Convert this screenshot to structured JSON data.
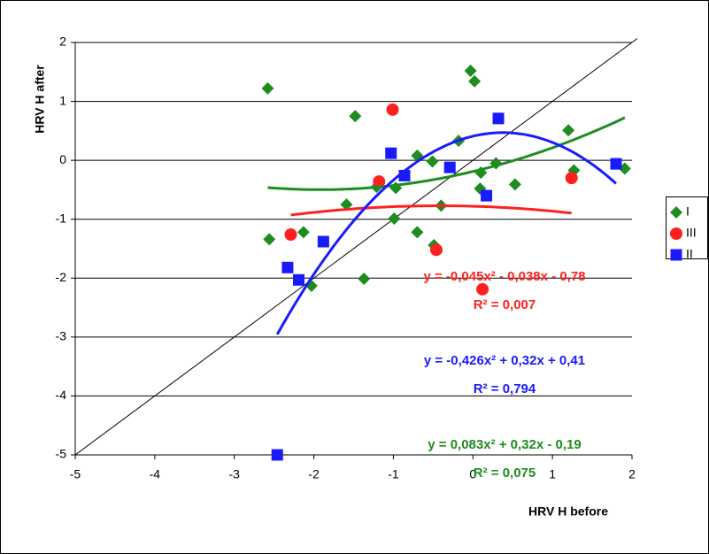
{
  "chart_data": {
    "type": "scatter",
    "x_label": "HRV H before",
    "y_label": "HRV H after",
    "xlim": [
      -5,
      2
    ],
    "ylim": [
      -5,
      2
    ],
    "xticks": [
      -5,
      -4,
      -3,
      -2,
      -1,
      0,
      1,
      2
    ],
    "yticks": [
      -5,
      -4,
      -3,
      -2,
      -1,
      0,
      1,
      2
    ],
    "grid": true,
    "identity_line": true,
    "legend": "right",
    "series": [
      {
        "name": "I",
        "color": "#1e8c1e",
        "marker": "diamond",
        "x": [
          -2.58,
          -2.56,
          -2.13,
          -2.03,
          -1.59,
          -1.48,
          -1.37,
          -1.21,
          -0.97,
          -0.99,
          -0.7,
          -0.7,
          -0.51,
          -0.49,
          -0.4,
          -0.18,
          -0.03,
          0.02,
          0.1,
          0.09,
          0.29,
          0.53,
          1.2,
          1.27,
          1.91
        ],
        "values": [
          1.22,
          -1.34,
          -1.22,
          -2.13,
          -0.75,
          0.75,
          -2.01,
          -0.45,
          -0.47,
          -0.99,
          0.08,
          -1.22,
          -0.02,
          -1.44,
          -0.77,
          0.33,
          1.52,
          1.34,
          -0.21,
          -0.48,
          -0.05,
          -0.41,
          0.51,
          -0.17,
          -0.14
        ],
        "trendline": {
          "coefficients": [
            0.083,
            0.32,
            -0.19
          ],
          "equation": "y = 0,083x² + 0,32x - 0,19",
          "r_squared": "R² = 0,075"
        }
      },
      {
        "name": "III",
        "color": "#ff2020",
        "marker": "circle",
        "x": [
          -2.29,
          -1.18,
          -1.01,
          -0.46,
          0.12,
          1.24
        ],
        "values": [
          -1.26,
          -0.36,
          0.86,
          -1.52,
          -2.19,
          -0.3
        ],
        "trendline": {
          "coefficients": [
            -0.045,
            -0.038,
            -0.78
          ],
          "equation": "y = -0,045x² - 0,038x - 0,78",
          "r_squared": "R² = 0,007"
        }
      },
      {
        "name": "II",
        "color": "#1a1aff",
        "marker": "square",
        "x": [
          -2.46,
          -2.33,
          -2.19,
          -1.88,
          -1.03,
          -0.86,
          -0.29,
          0.17,
          0.32,
          1.8
        ],
        "values": [
          -5.0,
          -1.82,
          -2.03,
          -1.38,
          0.12,
          -0.26,
          -0.12,
          -0.6,
          0.71,
          -0.06
        ],
        "trendline": {
          "coefficients": [
            -0.426,
            0.32,
            0.41
          ],
          "equation": "y = -0,426x² + 0,32x + 0,41",
          "r_squared": "R² = 0,794"
        }
      }
    ]
  }
}
